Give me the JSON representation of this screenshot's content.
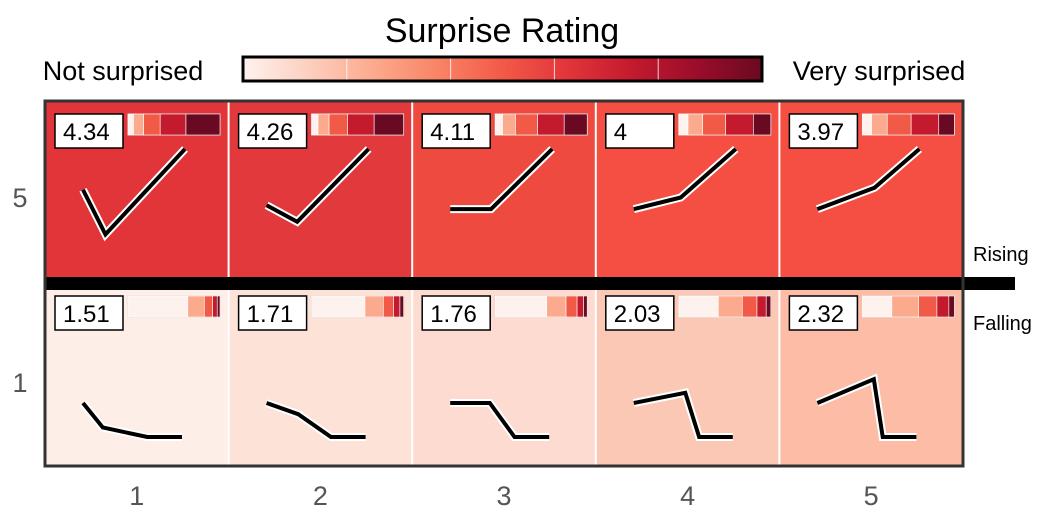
{
  "chart_data": {
    "type": "heatmap",
    "title": "Surprise Rating",
    "legend": {
      "low_label": "Not surprised",
      "high_label": "Very surprised",
      "colors": [
        "#fef2ee",
        "#fcd0c0",
        "#fcaa8e",
        "#f98466",
        "#f25a48",
        "#e2353a",
        "#c31a2e",
        "#9b0d2a",
        "#6a0a22"
      ]
    },
    "row_labels": [
      "5",
      "1"
    ],
    "col_labels": [
      "1",
      "2",
      "3",
      "4",
      "5"
    ],
    "side_labels": [
      "Rising",
      "Falling"
    ],
    "cells": [
      {
        "row": "5",
        "col": "1",
        "score": "4.34",
        "fill": "#e2353a",
        "distribution": [
          0.06,
          0.11,
          0.18,
          0.28,
          0.37
        ],
        "sketch": [
          [
            0,
            0.42
          ],
          [
            0.22,
            0.88
          ],
          [
            1,
            0
          ]
        ]
      },
      {
        "row": "5",
        "col": "2",
        "score": "4.26",
        "fill": "#e2393c",
        "distribution": [
          0.07,
          0.12,
          0.2,
          0.29,
          0.32
        ],
        "sketch": [
          [
            0,
            0.58
          ],
          [
            0.3,
            0.75
          ],
          [
            1,
            0
          ]
        ]
      },
      {
        "row": "5",
        "col": "3",
        "score": "4.11",
        "fill": "#ee4a40",
        "distribution": [
          0.08,
          0.14,
          0.24,
          0.29,
          0.25
        ],
        "sketch": [
          [
            0,
            0.62
          ],
          [
            0.4,
            0.62
          ],
          [
            1,
            0
          ]
        ]
      },
      {
        "row": "5",
        "col": "4",
        "score": "4",
        "fill": "#f44f42",
        "distribution": [
          0.1,
          0.16,
          0.25,
          0.3,
          0.19
        ],
        "sketch": [
          [
            0,
            0.62
          ],
          [
            0.46,
            0.5
          ],
          [
            1,
            0
          ]
        ]
      },
      {
        "row": "5",
        "col": "5",
        "score": "3.97",
        "fill": "#f44f42",
        "distribution": [
          0.1,
          0.17,
          0.26,
          0.3,
          0.17
        ],
        "sketch": [
          [
            0,
            0.62
          ],
          [
            0.56,
            0.4
          ],
          [
            1,
            0
          ]
        ]
      },
      {
        "row": "1",
        "col": "1",
        "score": "1.51",
        "fill": "#fdeee8",
        "distribution": [
          0.65,
          0.18,
          0.09,
          0.05,
          0.03
        ],
        "sketch": [
          [
            0,
            0
          ],
          [
            0.2,
            0.72
          ],
          [
            0.65,
            1
          ],
          [
            1,
            1
          ]
        ]
      },
      {
        "row": "1",
        "col": "2",
        "score": "1.71",
        "fill": "#fde2d8",
        "distribution": [
          0.58,
          0.2,
          0.11,
          0.07,
          0.04
        ],
        "sketch": [
          [
            0,
            0
          ],
          [
            0.32,
            0.33
          ],
          [
            0.65,
            1
          ],
          [
            1,
            1
          ]
        ]
      },
      {
        "row": "1",
        "col": "3",
        "score": "1.76",
        "fill": "#fddbd0",
        "distribution": [
          0.56,
          0.21,
          0.12,
          0.07,
          0.04
        ],
        "sketch": [
          [
            0,
            0
          ],
          [
            0.4,
            0
          ],
          [
            0.65,
            1
          ],
          [
            1,
            1
          ]
        ]
      },
      {
        "row": "1",
        "col": "4",
        "score": "2.03",
        "fill": "#fcc8b6",
        "distribution": [
          0.43,
          0.26,
          0.16,
          0.1,
          0.05
        ],
        "sketch": [
          [
            0,
            0
          ],
          [
            0.52,
            -0.3
          ],
          [
            0.66,
            1
          ],
          [
            1,
            1
          ]
        ]
      },
      {
        "row": "1",
        "col": "5",
        "score": "2.32",
        "fill": "#fcbca6",
        "distribution": [
          0.32,
          0.29,
          0.2,
          0.13,
          0.06
        ],
        "sketch": [
          [
            0,
            0
          ],
          [
            0.57,
            -0.7
          ],
          [
            0.66,
            1
          ],
          [
            1,
            1
          ]
        ]
      }
    ]
  }
}
